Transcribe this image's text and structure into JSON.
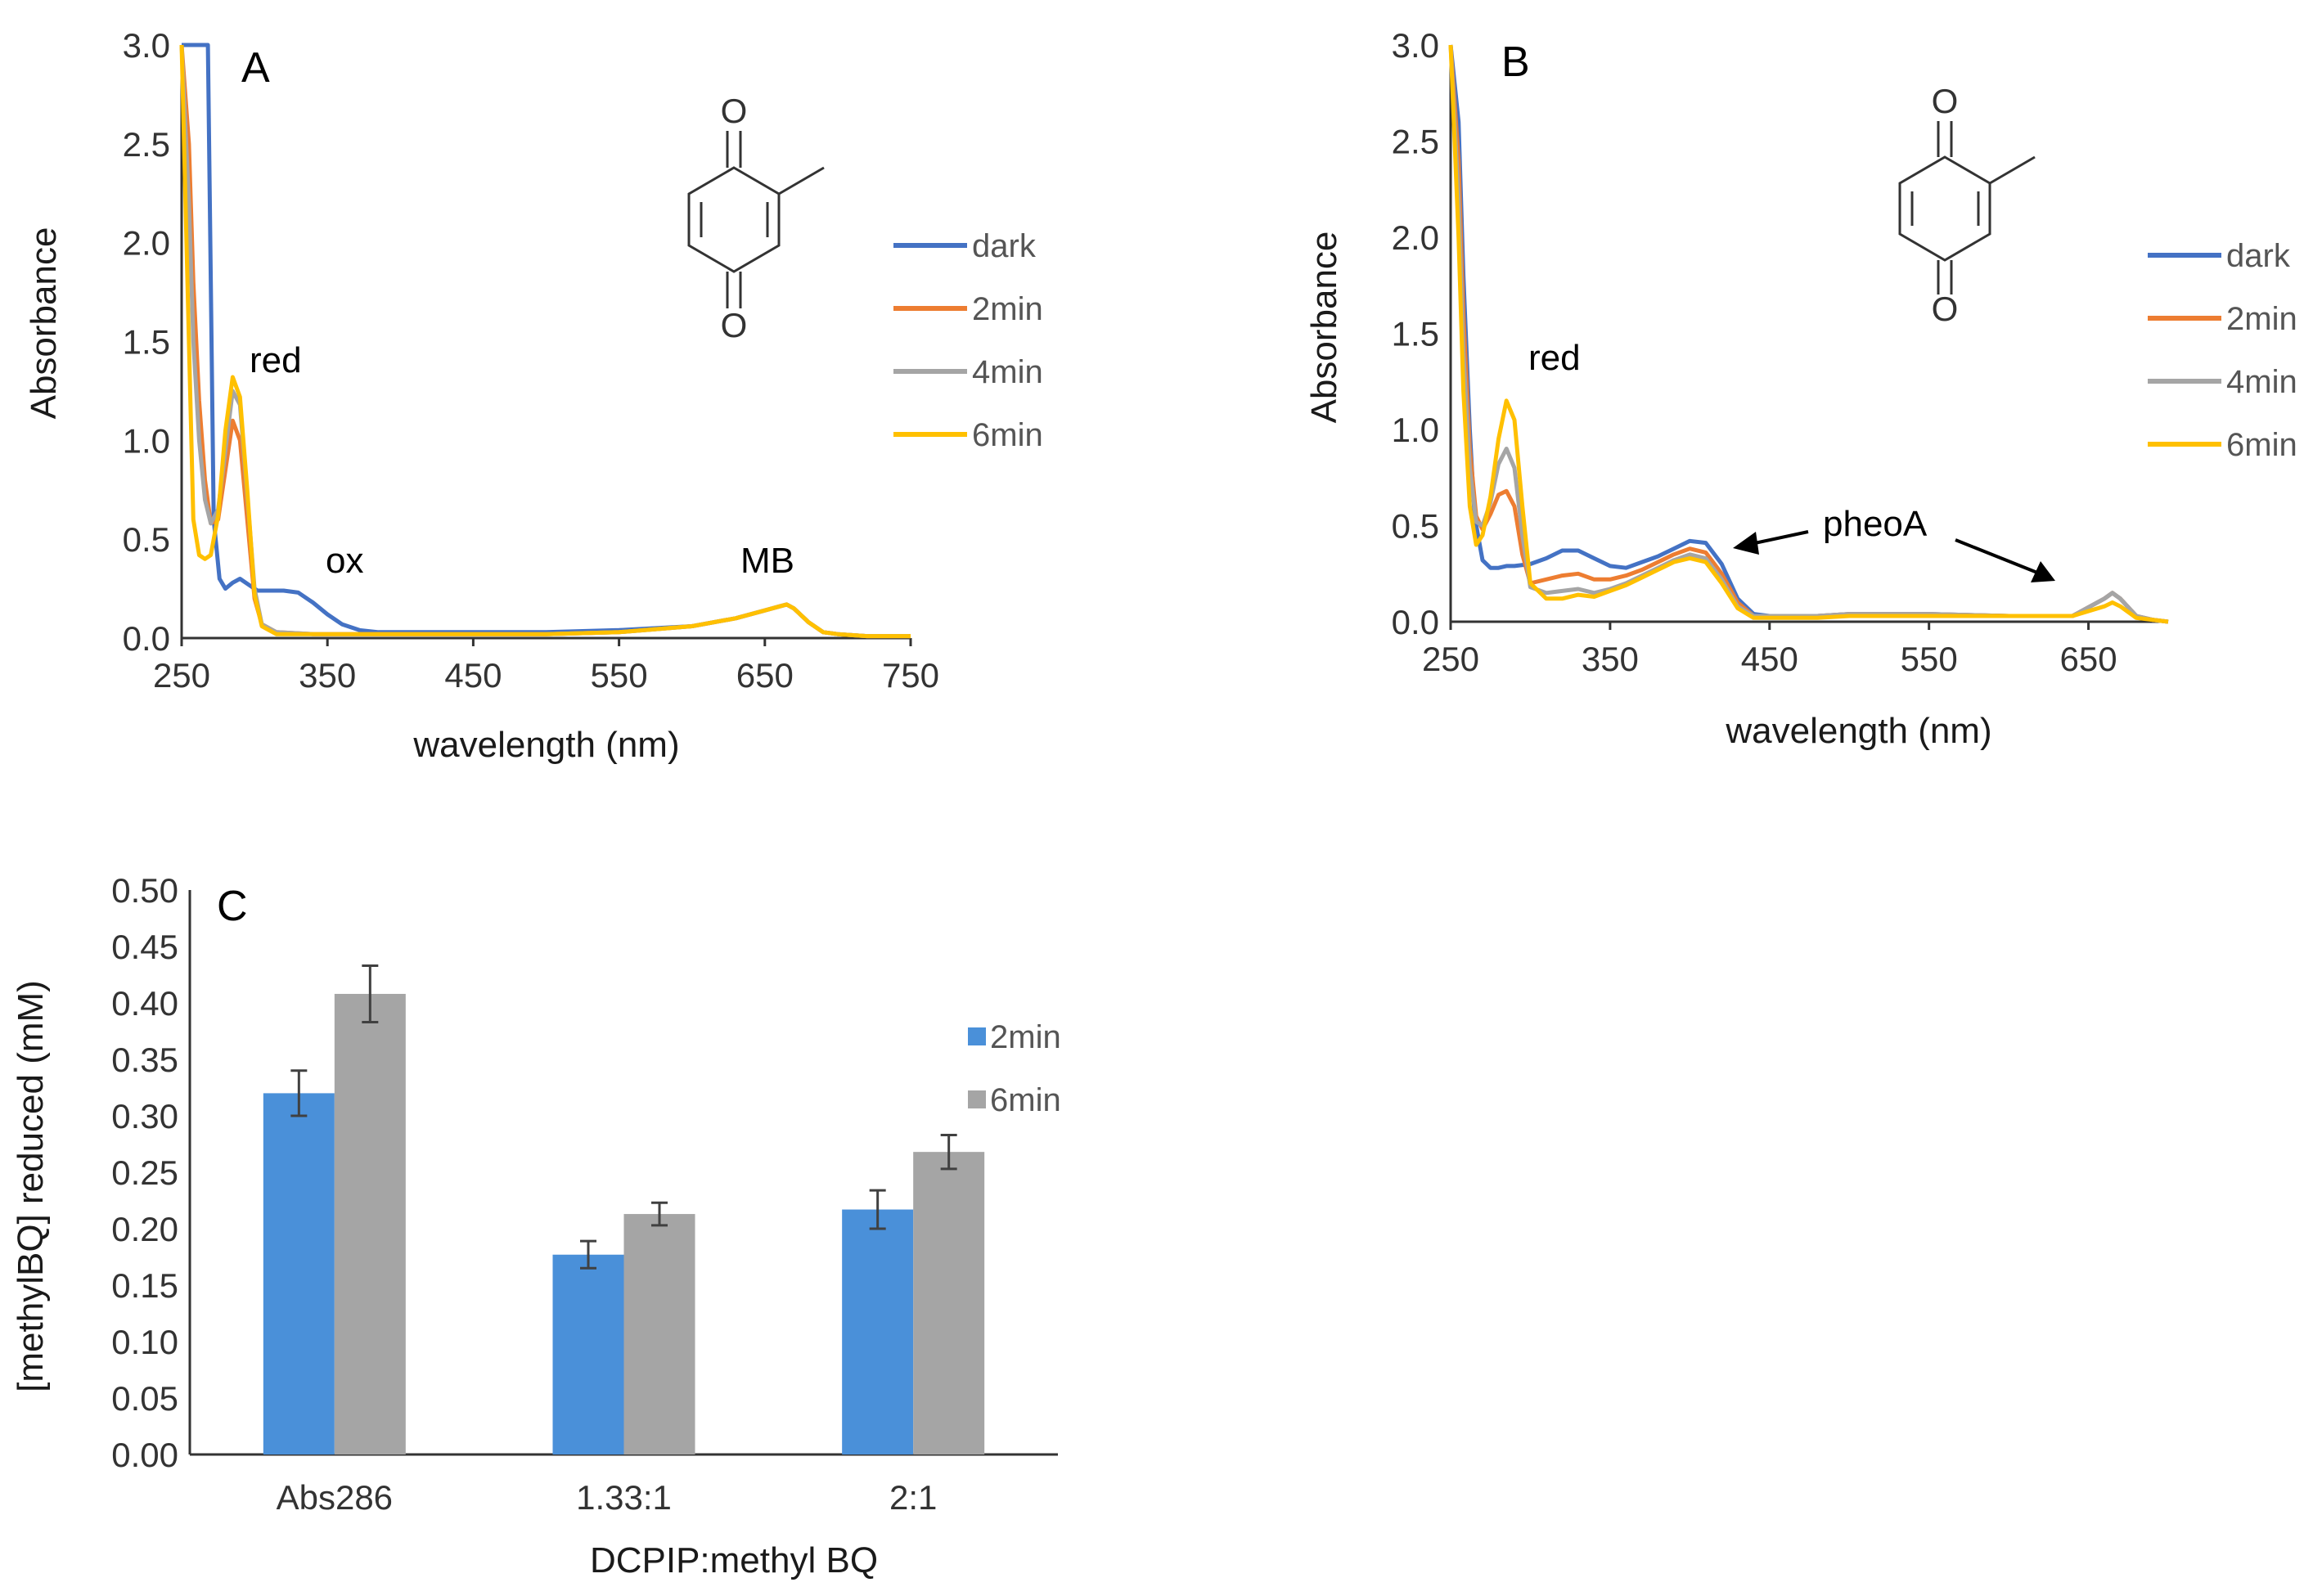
{
  "colors": {
    "dark": "#4472C4",
    "2min": "#ED7D31",
    "4min": "#A5A5A5",
    "6min": "#FFC000",
    "bar2min": "#4A90D9",
    "bar6min": "#A5A5A5"
  },
  "chart_data": [
    {
      "panel": "A",
      "type": "line",
      "xlabel": "wavelength  (nm)",
      "ylabel": "Absorbance",
      "xlim": [
        250,
        750
      ],
      "ylim": [
        0,
        3.0
      ],
      "xticks": [
        "250",
        "350",
        "450",
        "550",
        "650",
        "750"
      ],
      "yticks": [
        "0.0",
        "0.5",
        "1.0",
        "1.5",
        "2.0",
        "2.5",
        "3.0"
      ],
      "legend": [
        "dark",
        "2min",
        "4min",
        "6min"
      ],
      "annotations": [
        "red",
        "ox",
        "MB"
      ],
      "molecule_labels": [
        "O",
        "O"
      ],
      "series": [
        {
          "name": "dark",
          "x": [
            250,
            258,
            262,
            265,
            268,
            272,
            276,
            280,
            285,
            290,
            296,
            302,
            310,
            320,
            330,
            340,
            350,
            360,
            372,
            385,
            400,
            450,
            500,
            550,
            600,
            630,
            650,
            660,
            665,
            670,
            680,
            690,
            700,
            720,
            750
          ],
          "y": [
            3.0,
            3.0,
            3.0,
            3.0,
            3.0,
            0.6,
            0.3,
            0.25,
            0.28,
            0.3,
            0.27,
            0.24,
            0.24,
            0.24,
            0.23,
            0.18,
            0.12,
            0.07,
            0.04,
            0.03,
            0.03,
            0.03,
            0.03,
            0.04,
            0.06,
            0.1,
            0.14,
            0.16,
            0.17,
            0.15,
            0.08,
            0.03,
            0.02,
            0.01,
            0.01
          ]
        },
        {
          "name": "2min",
          "x": [
            250,
            255,
            258,
            262,
            266,
            270,
            275,
            280,
            285,
            290,
            295,
            300,
            305,
            315,
            340,
            400,
            450,
            500,
            550,
            600,
            630,
            650,
            660,
            665,
            670,
            680,
            690,
            700,
            720,
            750
          ],
          "y": [
            3.0,
            2.5,
            1.8,
            1.2,
            0.8,
            0.58,
            0.6,
            0.85,
            1.1,
            1.0,
            0.6,
            0.2,
            0.07,
            0.03,
            0.02,
            0.02,
            0.02,
            0.02,
            0.03,
            0.06,
            0.1,
            0.14,
            0.16,
            0.17,
            0.15,
            0.08,
            0.03,
            0.02,
            0.01,
            0.01
          ]
        },
        {
          "name": "4min",
          "x": [
            250,
            255,
            258,
            262,
            266,
            270,
            275,
            280,
            285,
            290,
            295,
            300,
            305,
            315,
            340,
            400,
            450,
            500,
            550,
            600,
            630,
            650,
            660,
            665,
            670,
            680,
            690,
            700,
            720,
            750
          ],
          "y": [
            3.0,
            2.2,
            1.5,
            1.0,
            0.7,
            0.58,
            0.65,
            0.95,
            1.25,
            1.18,
            0.72,
            0.25,
            0.07,
            0.03,
            0.02,
            0.02,
            0.02,
            0.02,
            0.03,
            0.06,
            0.1,
            0.14,
            0.16,
            0.17,
            0.15,
            0.08,
            0.03,
            0.02,
            0.01,
            0.01
          ]
        },
        {
          "name": "6min",
          "x": [
            250,
            255,
            258,
            262,
            266,
            270,
            275,
            280,
            285,
            290,
            295,
            300,
            305,
            315,
            340,
            400,
            450,
            500,
            550,
            600,
            630,
            650,
            660,
            665,
            670,
            680,
            690,
            700,
            720,
            750
          ],
          "y": [
            3.0,
            1.5,
            0.6,
            0.42,
            0.4,
            0.42,
            0.62,
            1.05,
            1.32,
            1.22,
            0.75,
            0.22,
            0.06,
            0.02,
            0.02,
            0.02,
            0.02,
            0.02,
            0.03,
            0.06,
            0.1,
            0.14,
            0.16,
            0.17,
            0.15,
            0.08,
            0.03,
            0.02,
            0.01,
            0.01
          ]
        }
      ]
    },
    {
      "panel": "B",
      "type": "line",
      "xlabel": "wavelength  (nm)",
      "ylabel": "Absorbance",
      "xlim": [
        250,
        700
      ],
      "ylim": [
        0,
        3.0
      ],
      "xticks": [
        "250",
        "350",
        "450",
        "550",
        "650"
      ],
      "yticks": [
        "0.0",
        "0.5",
        "1.0",
        "1.5",
        "2.0",
        "2.5",
        "3.0"
      ],
      "legend": [
        "dark",
        "2min",
        "4min",
        "6min"
      ],
      "annotations": [
        "red",
        "pheoA"
      ],
      "molecule_labels": [
        "O",
        "O"
      ],
      "series": [
        {
          "name": "dark",
          "x": [
            250,
            255,
            258,
            262,
            265,
            270,
            275,
            280,
            285,
            290,
            300,
            310,
            320,
            330,
            340,
            350,
            360,
            370,
            380,
            390,
            400,
            410,
            420,
            430,
            440,
            450,
            480,
            500,
            550,
            600,
            620,
            640,
            660,
            665,
            670,
            680,
            690,
            700
          ],
          "y": [
            3.0,
            2.6,
            1.8,
            1.0,
            0.55,
            0.32,
            0.28,
            0.28,
            0.29,
            0.29,
            0.3,
            0.33,
            0.37,
            0.37,
            0.33,
            0.29,
            0.28,
            0.31,
            0.34,
            0.38,
            0.42,
            0.41,
            0.3,
            0.12,
            0.04,
            0.03,
            0.03,
            0.04,
            0.04,
            0.03,
            0.03,
            0.03,
            0.12,
            0.15,
            0.12,
            0.03,
            0.01,
            0.0
          ]
        },
        {
          "name": "2min",
          "x": [
            250,
            255,
            258,
            262,
            266,
            270,
            275,
            280,
            285,
            290,
            295,
            300,
            310,
            320,
            330,
            340,
            350,
            360,
            370,
            380,
            390,
            400,
            410,
            420,
            430,
            440,
            450,
            480,
            500,
            550,
            600,
            620,
            640,
            660,
            665,
            670,
            680,
            690,
            700
          ],
          "y": [
            3.0,
            2.4,
            1.6,
            0.9,
            0.55,
            0.48,
            0.56,
            0.66,
            0.68,
            0.6,
            0.35,
            0.2,
            0.22,
            0.24,
            0.25,
            0.22,
            0.22,
            0.24,
            0.27,
            0.31,
            0.35,
            0.38,
            0.36,
            0.25,
            0.1,
            0.03,
            0.03,
            0.03,
            0.04,
            0.04,
            0.03,
            0.03,
            0.03,
            0.12,
            0.15,
            0.12,
            0.03,
            0.01,
            0.0
          ]
        },
        {
          "name": "4min",
          "x": [
            250,
            255,
            258,
            262,
            266,
            270,
            275,
            280,
            285,
            290,
            295,
            300,
            310,
            320,
            330,
            340,
            350,
            360,
            370,
            380,
            390,
            400,
            410,
            420,
            430,
            440,
            450,
            480,
            500,
            550,
            600,
            620,
            640,
            660,
            665,
            670,
            680,
            690,
            700
          ],
          "y": [
            3.0,
            2.2,
            1.4,
            0.8,
            0.52,
            0.5,
            0.62,
            0.82,
            0.9,
            0.8,
            0.45,
            0.18,
            0.15,
            0.16,
            0.17,
            0.15,
            0.17,
            0.2,
            0.24,
            0.28,
            0.32,
            0.35,
            0.33,
            0.22,
            0.08,
            0.03,
            0.03,
            0.03,
            0.04,
            0.04,
            0.03,
            0.03,
            0.03,
            0.12,
            0.15,
            0.12,
            0.03,
            0.01,
            0.0
          ]
        },
        {
          "name": "6min",
          "x": [
            250,
            255,
            258,
            262,
            266,
            270,
            275,
            280,
            285,
            290,
            295,
            300,
            310,
            320,
            330,
            340,
            350,
            360,
            370,
            380,
            390,
            400,
            410,
            420,
            430,
            440,
            450,
            480,
            500,
            550,
            600,
            620,
            640,
            660,
            665,
            670,
            680,
            690,
            700
          ],
          "y": [
            3.0,
            2.0,
            1.2,
            0.6,
            0.4,
            0.45,
            0.65,
            0.95,
            1.15,
            1.05,
            0.6,
            0.2,
            0.12,
            0.12,
            0.14,
            0.13,
            0.16,
            0.19,
            0.23,
            0.27,
            0.31,
            0.33,
            0.31,
            0.2,
            0.07,
            0.02,
            0.02,
            0.02,
            0.03,
            0.03,
            0.03,
            0.03,
            0.03,
            0.08,
            0.1,
            0.08,
            0.02,
            0.01,
            0.0
          ]
        }
      ]
    },
    {
      "panel": "C",
      "type": "bar",
      "xlabel": "DCPIP:methyl BQ",
      "ylabel": "[methylBQ]  reduced (mM)",
      "ylim": [
        0,
        0.5
      ],
      "yticks": [
        "0.00",
        "0.05",
        "0.10",
        "0.15",
        "0.20",
        "0.25",
        "0.30",
        "0.35",
        "0.40",
        "0.45",
        "0.50"
      ],
      "categories": [
        "Abs286",
        "1.33:1",
        "2:1"
      ],
      "series": [
        {
          "name": "2min",
          "values": [
            0.32,
            0.177,
            0.217
          ],
          "errors": [
            0.02,
            0.012,
            0.017
          ]
        },
        {
          "name": "6min",
          "values": [
            0.408,
            0.213,
            0.268
          ],
          "errors": [
            0.025,
            0.01,
            0.015
          ]
        }
      ]
    }
  ]
}
